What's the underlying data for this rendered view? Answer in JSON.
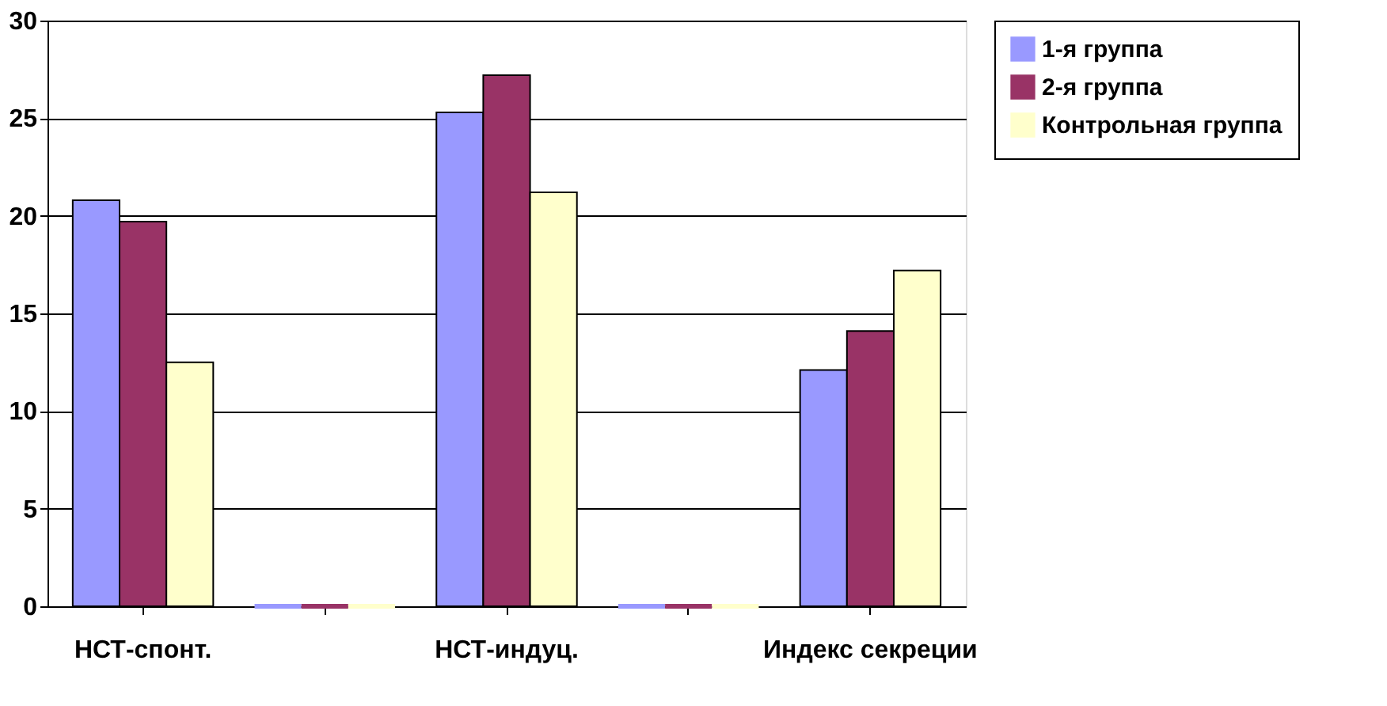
{
  "chart_data": {
    "type": "bar",
    "categories": [
      "НСТ-спонт.",
      null,
      "НСТ-индуц.",
      null,
      "Индекс секреции"
    ],
    "series": [
      {
        "name": "1-я группа",
        "color": "#9999ff",
        "values": [
          20.8,
          0,
          25.3,
          0,
          12.1
        ]
      },
      {
        "name": "2-я группа",
        "color": "#993366",
        "values": [
          19.7,
          0,
          27.2,
          0,
          14.1
        ]
      },
      {
        "name": "Контрольная группа",
        "color": "#ffffcc",
        "values": [
          12.5,
          0,
          21.2,
          0,
          17.2
        ]
      }
    ],
    "ylim": [
      0,
      30
    ],
    "yticks": [
      0,
      5,
      10,
      15,
      20,
      25,
      30
    ],
    "grid": "y",
    "legend": "right"
  }
}
